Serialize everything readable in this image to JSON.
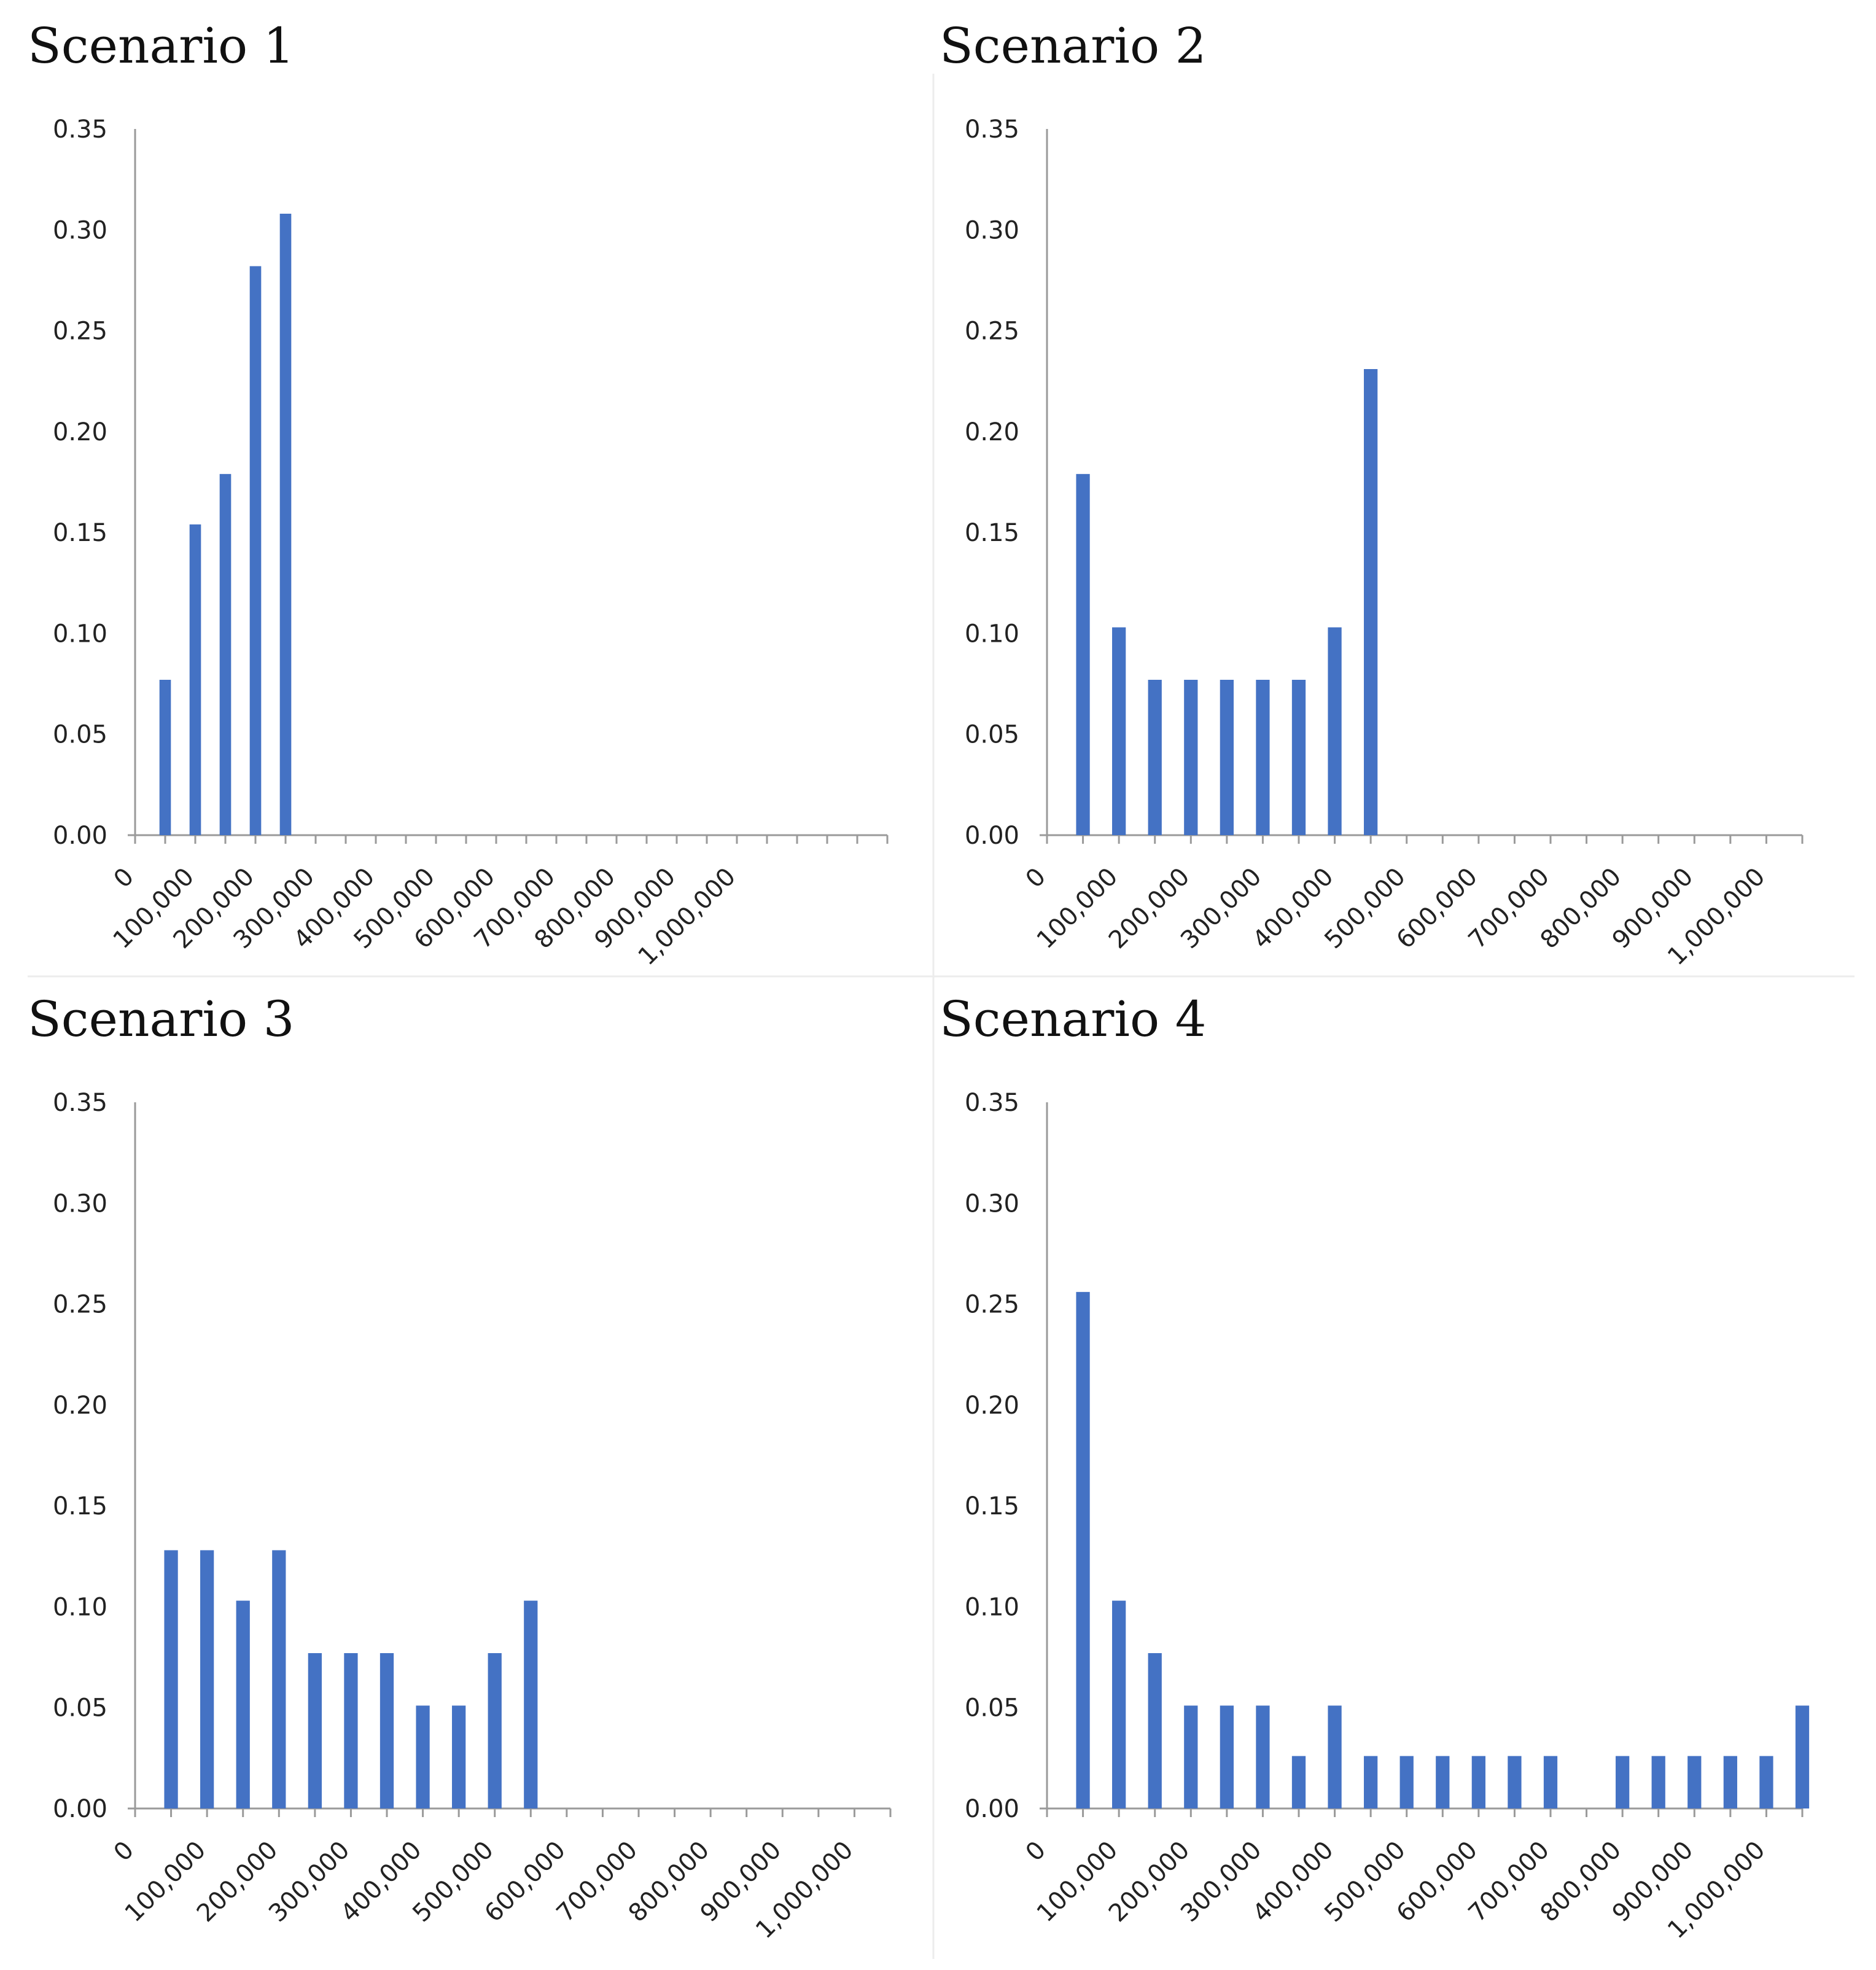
{
  "colors": {
    "bar": "#4472c4"
  },
  "chart_data": [
    {
      "type": "bar",
      "title": "Scenario 1",
      "xlabel": "",
      "ylabel": "",
      "ylim": [
        0,
        0.35
      ],
      "y_ticks": [
        "0.00",
        "0.05",
        "0.10",
        "0.15",
        "0.20",
        "0.25",
        "0.30",
        "0.35"
      ],
      "num_bins": 25,
      "x_tick_labels": [
        "0",
        "100,000",
        "200,000",
        "300,000",
        "400,000",
        "500,000",
        "600,000",
        "700,000",
        "800,000",
        "900,000",
        "1,000,000"
      ],
      "bin_width": 50000,
      "values": [
        0.077,
        0.154,
        0.179,
        0.282,
        0.308,
        0,
        0,
        0,
        0,
        0,
        0,
        0,
        0,
        0,
        0,
        0,
        0,
        0,
        0,
        0,
        0,
        0,
        0,
        0,
        0
      ]
    },
    {
      "type": "bar",
      "title": "Scenario 2",
      "xlabel": "",
      "ylabel": "",
      "ylim": [
        0,
        0.35
      ],
      "y_ticks": [
        "0.00",
        "0.05",
        "0.10",
        "0.15",
        "0.20",
        "0.25",
        "0.30",
        "0.35"
      ],
      "num_bins": 21,
      "x_tick_labels": [
        "0",
        "100,000",
        "200,000",
        "300,000",
        "400,000",
        "500,000",
        "600,000",
        "700,000",
        "800,000",
        "900,000",
        "1,000,000"
      ],
      "bin_width": 50000,
      "values": [
        0.179,
        0.103,
        0.077,
        0.077,
        0.077,
        0.077,
        0.077,
        0.103,
        0.231,
        0,
        0,
        0,
        0,
        0,
        0,
        0,
        0,
        0,
        0,
        0,
        0
      ]
    },
    {
      "type": "bar",
      "title": "Scenario 3",
      "xlabel": "",
      "ylabel": "",
      "ylim": [
        0,
        0.35
      ],
      "y_ticks": [
        "0.00",
        "0.05",
        "0.10",
        "0.15",
        "0.20",
        "0.25",
        "0.30",
        "0.35"
      ],
      "num_bins": 21,
      "x_tick_labels": [
        "0",
        "100,000",
        "200,000",
        "300,000",
        "400,000",
        "500,000",
        "600,000",
        "700,000",
        "800,000",
        "900,000",
        "1,000,000"
      ],
      "bin_width": 50000,
      "values": [
        0.128,
        0.128,
        0.103,
        0.128,
        0.077,
        0.077,
        0.077,
        0.051,
        0.051,
        0.077,
        0.103,
        0,
        0,
        0,
        0,
        0,
        0,
        0,
        0,
        0,
        0
      ]
    },
    {
      "type": "bar",
      "title": "Scenario 4",
      "xlabel": "",
      "ylabel": "",
      "ylim": [
        0,
        0.35
      ],
      "y_ticks": [
        "0.00",
        "0.05",
        "0.10",
        "0.15",
        "0.20",
        "0.25",
        "0.30",
        "0.35"
      ],
      "num_bins": 21,
      "x_tick_labels": [
        "0",
        "100,000",
        "200,000",
        "300,000",
        "400,000",
        "500,000",
        "600,000",
        "700,000",
        "800,000",
        "900,000",
        "1,000,000"
      ],
      "bin_width": 50000,
      "values": [
        0.256,
        0.103,
        0.077,
        0.051,
        0.051,
        0.051,
        0.026,
        0.051,
        0.026,
        0.026,
        0.026,
        0.026,
        0.026,
        0.026,
        0,
        0.026,
        0.026,
        0.026,
        0.026,
        0.026,
        0.051
      ]
    }
  ]
}
